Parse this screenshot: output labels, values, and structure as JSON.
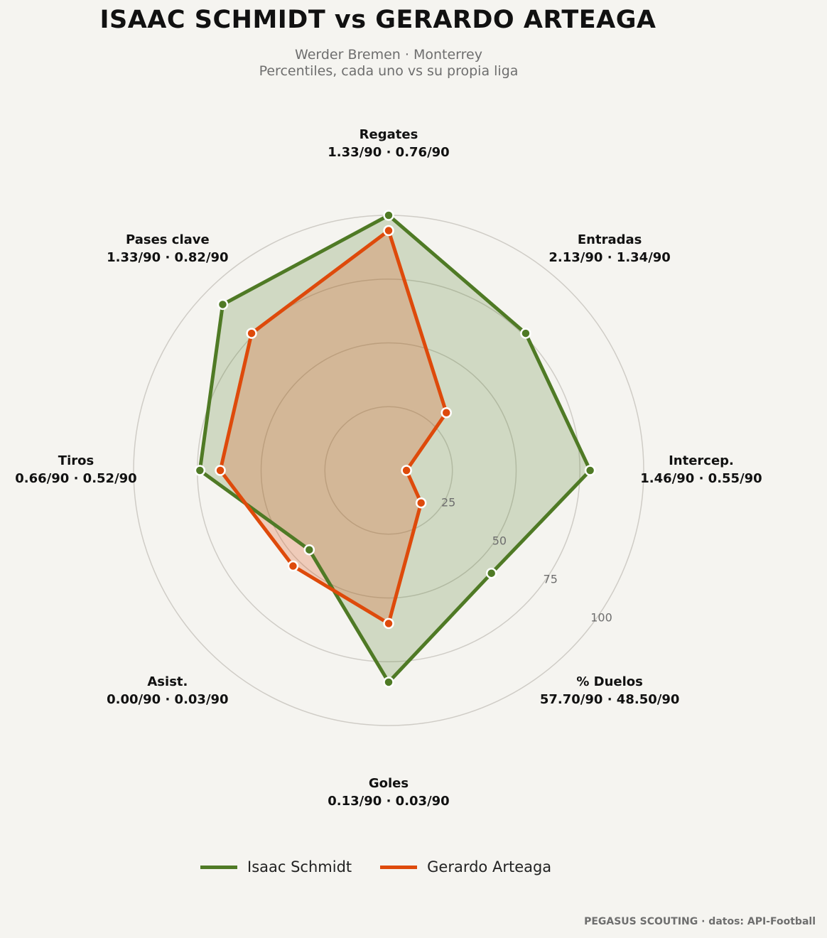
{
  "title": "ISAAC SCHMIDT  vs  GERARDO ARTEAGA",
  "subtitle": {
    "line1": "Werder Bremen · Monterrey",
    "line2": "Percentiles, cada uno vs su propia liga"
  },
  "footer": "PEGASUS SCOUTING · datos: API-Football",
  "colors": {
    "background": "#f5f4f0",
    "series1": "#4f7a25",
    "series2": "#de4a0b",
    "grid": "#cfccc6"
  },
  "chart_data": {
    "type": "radar",
    "rlim": [
      0,
      100
    ],
    "ring_ticks": [
      25,
      50,
      75,
      100
    ],
    "axes": [
      {
        "label": "Regates",
        "values_label": "1.33/90 · 0.76/90"
      },
      {
        "label": "Entradas",
        "values_label": "2.13/90 · 1.34/90"
      },
      {
        "label": "Intercep.",
        "values_label": "1.46/90 · 0.55/90"
      },
      {
        "label": "% Duelos",
        "values_label": "57.70/90 · 48.50/90"
      },
      {
        "label": "Goles",
        "values_label": "0.13/90 · 0.03/90"
      },
      {
        "label": "Asist.",
        "values_label": "0.00/90 · 0.03/90"
      },
      {
        "label": "Tiros",
        "values_label": "0.66/90 · 0.52/90"
      },
      {
        "label": "Pases clave",
        "values_label": "1.33/90 · 0.82/90"
      }
    ],
    "series": [
      {
        "name": "Isaac Schmidt",
        "values": [
          100,
          76,
          79,
          57,
          83,
          44,
          74,
          92
        ]
      },
      {
        "name": "Gerardo Arteaga",
        "values": [
          94,
          32,
          7,
          18,
          60,
          53,
          66,
          76
        ]
      }
    ],
    "legend_position": "bottom"
  }
}
